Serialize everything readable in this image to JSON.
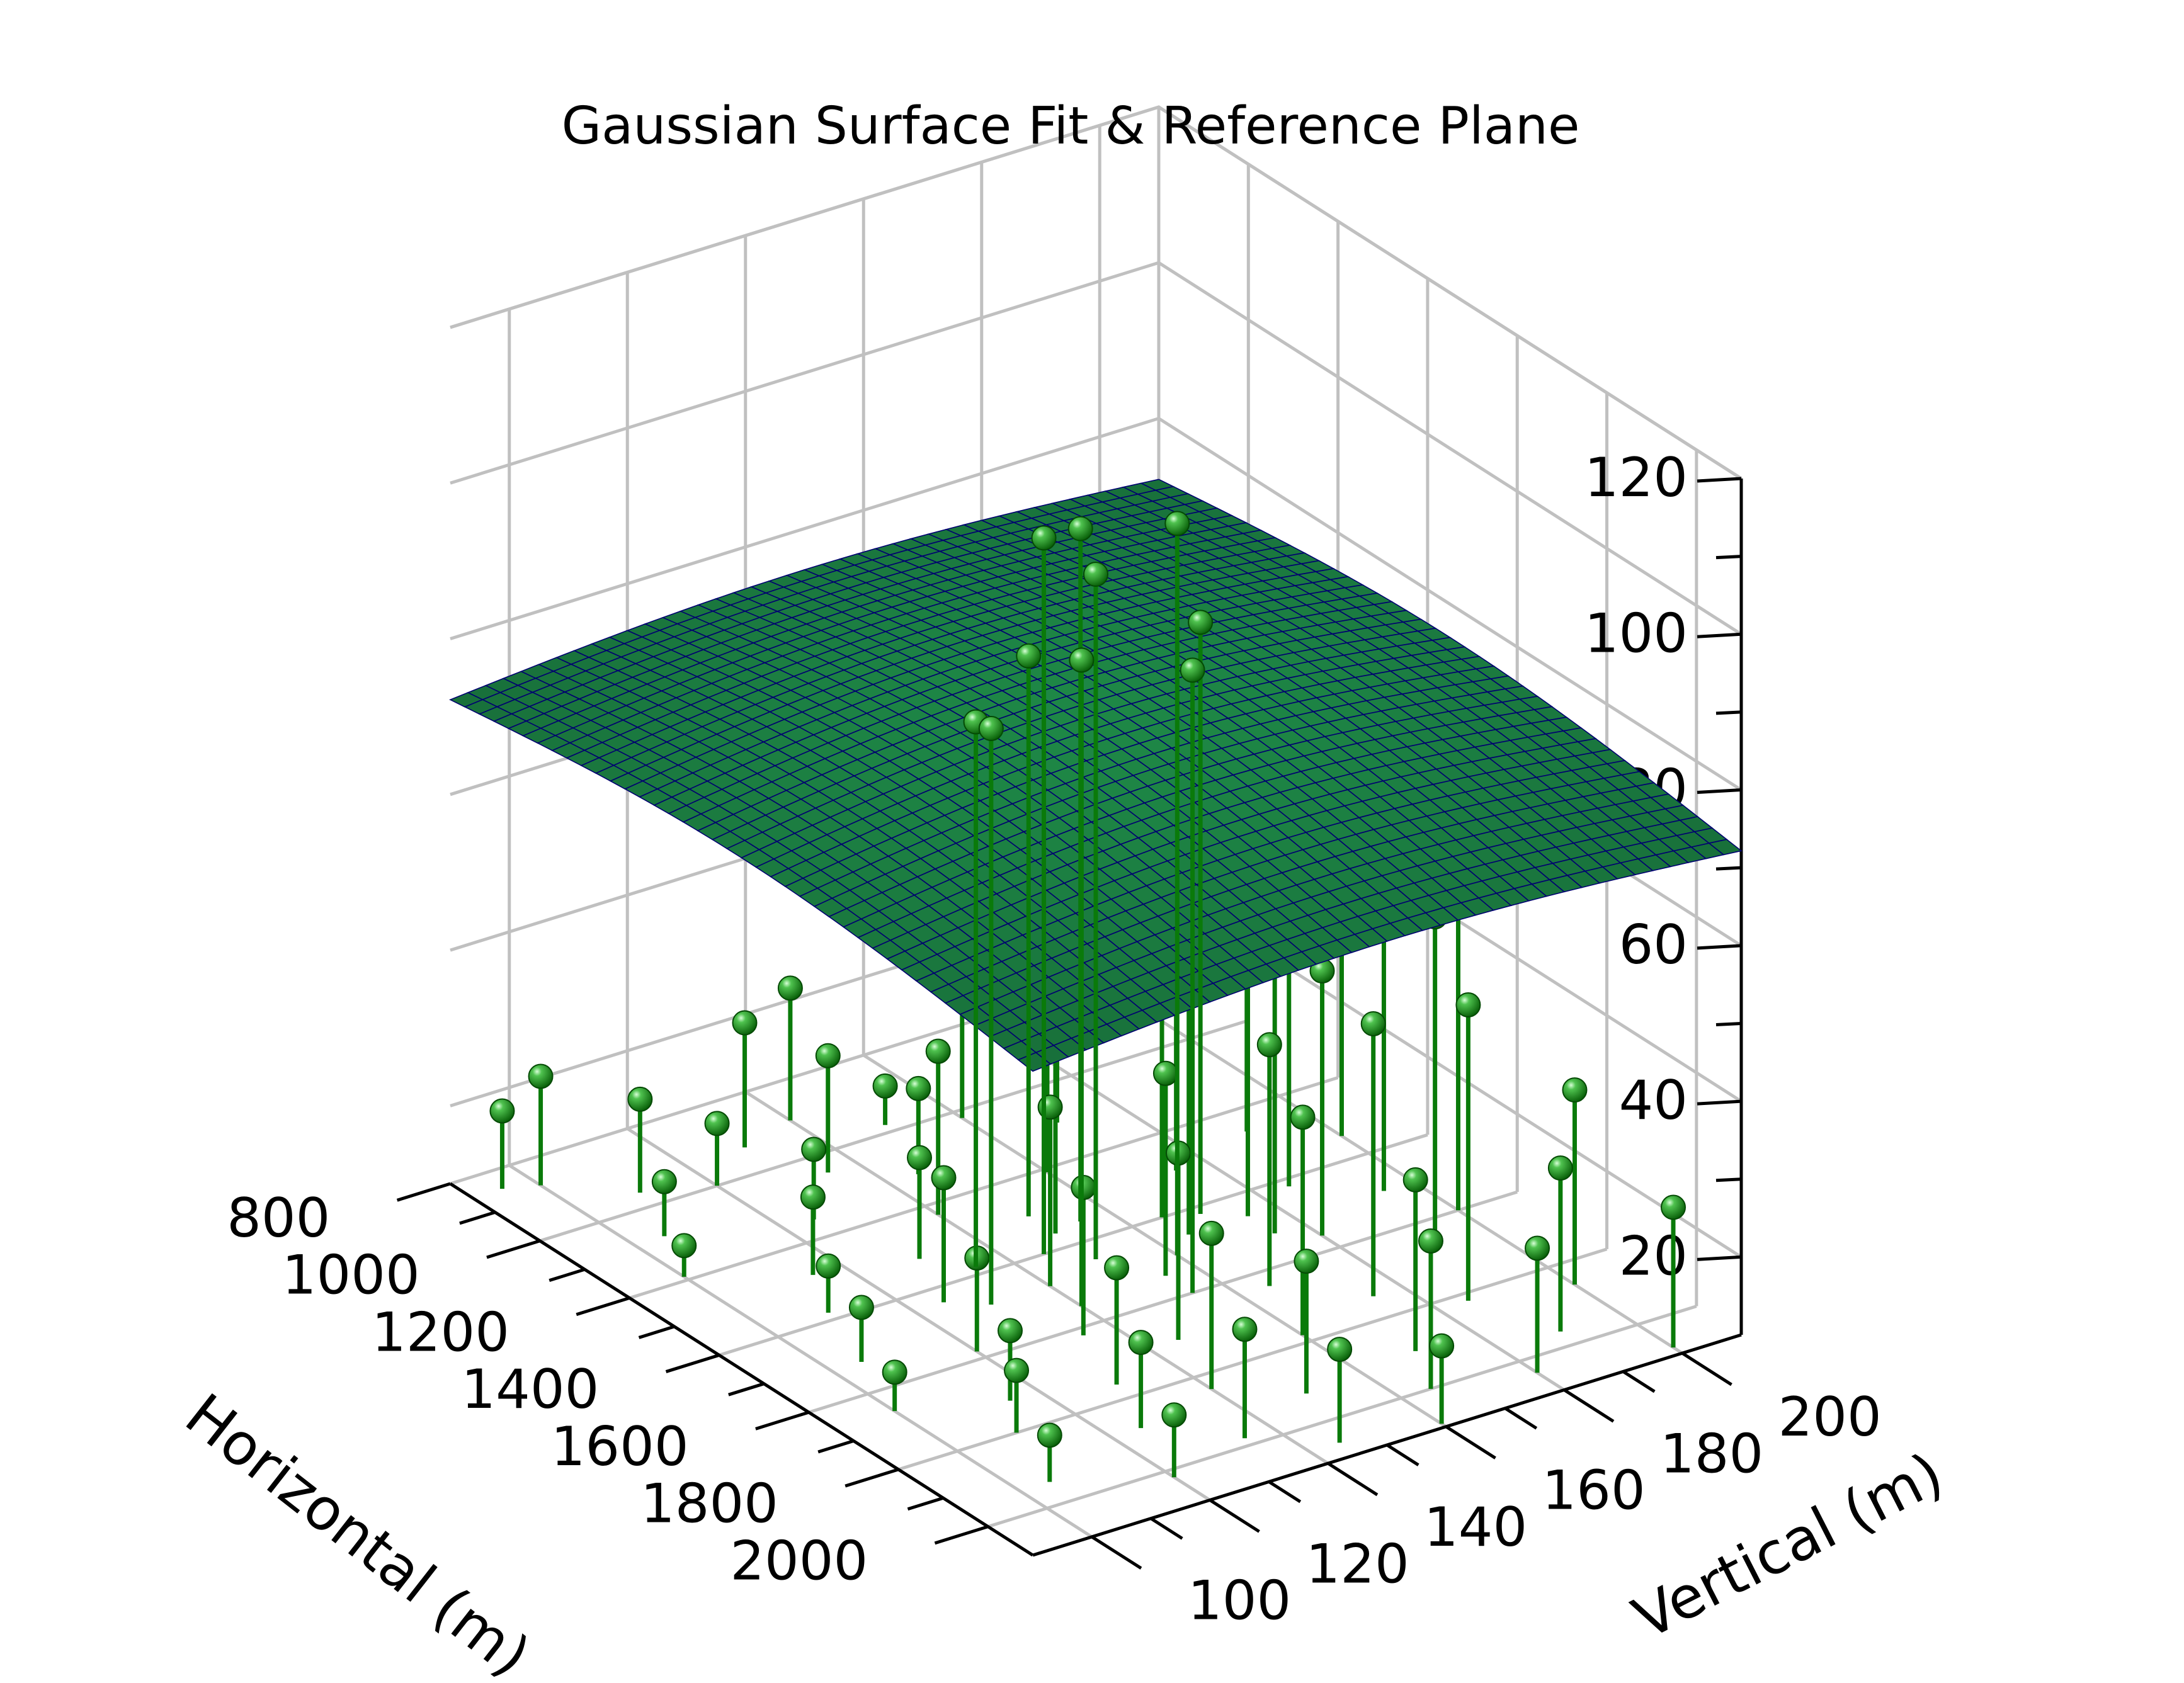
{
  "colors": {
    "grid": "#c0c0c0",
    "axis": "#000000",
    "surface_fill": "#1a6e3a",
    "surface_mesh": "#000070",
    "stem": "#0a7a0a",
    "marker": "#0a8a0a",
    "marker_highlight": "#9be89b",
    "background": "#ffffff"
  },
  "chart_data": {
    "type": "scatter",
    "title": "Gaussian Surface Fit & Reference Plane",
    "xlabel": "Horizontal (m)",
    "ylabel": "Vertical (m)",
    "zlabel": "",
    "xlim": [
      800,
      2100
    ],
    "ylim": [
      90,
      210
    ],
    "zlim": [
      10,
      120
    ],
    "x_ticks": [
      "800",
      "1000",
      "1200",
      "1400",
      "1600",
      "1800",
      "2000"
    ],
    "y_ticks": [
      "100",
      "120",
      "140",
      "160",
      "180",
      "200"
    ],
    "z_ticks": [
      "20",
      "40",
      "60",
      "80",
      "100",
      "120"
    ],
    "grid": true,
    "surface": {
      "name": "",
      "model": "gaussian",
      "amplitude": 13,
      "offset": 67,
      "center_x": 1450,
      "center_y": 150,
      "sigma_x": 900,
      "sigma_y": 95,
      "mesh_lines": 40
    },
    "points": [
      {
        "x": 850,
        "y": 95,
        "z": 20
      },
      {
        "x": 870,
        "y": 100,
        "z": 24
      },
      {
        "x": 900,
        "y": 140,
        "z": 27
      },
      {
        "x": 930,
        "y": 130,
        "z": 26
      },
      {
        "x": 960,
        "y": 110,
        "z": 22
      },
      {
        "x": 980,
        "y": 150,
        "z": 15
      },
      {
        "x": 1000,
        "y": 120,
        "z": 18
      },
      {
        "x": 1020,
        "y": 160,
        "z": 30
      },
      {
        "x": 1050,
        "y": 135,
        "z": 25
      },
      {
        "x": 1080,
        "y": 105,
        "z": 17
      },
      {
        "x": 1100,
        "y": 170,
        "z": 28
      },
      {
        "x": 1120,
        "y": 145,
        "z": 21
      },
      {
        "x": 1150,
        "y": 125,
        "z": 19
      },
      {
        "x": 1170,
        "y": 185,
        "z": 46
      },
      {
        "x": 1190,
        "y": 100,
        "z": 14
      },
      {
        "x": 1210,
        "y": 160,
        "z": 36
      },
      {
        "x": 1230,
        "y": 140,
        "z": 31
      },
      {
        "x": 1260,
        "y": 190,
        "z": 50
      },
      {
        "x": 1280,
        "y": 115,
        "z": 20
      },
      {
        "x": 1300,
        "y": 175,
        "z": 42
      },
      {
        "x": 1320,
        "y": 130,
        "z": 23
      },
      {
        "x": 1340,
        "y": 200,
        "z": 58
      },
      {
        "x": 1360,
        "y": 150,
        "z": 38
      },
      {
        "x": 1380,
        "y": 110,
        "z": 16
      },
      {
        "x": 1400,
        "y": 165,
        "z": 40
      },
      {
        "x": 1420,
        "y": 185,
        "z": 55
      },
      {
        "x": 1440,
        "y": 125,
        "z": 26
      },
      {
        "x": 1460,
        "y": 175,
        "z": 47
      },
      {
        "x": 1480,
        "y": 140,
        "z": 33
      },
      {
        "x": 1500,
        "y": 195,
        "z": 60
      },
      {
        "x": 1520,
        "y": 105,
        "z": 17
      },
      {
        "x": 1540,
        "y": 155,
        "z": 36
      },
      {
        "x": 1560,
        "y": 180,
        "z": 44
      },
      {
        "x": 1580,
        "y": 120,
        "z": 22
      },
      {
        "x": 1600,
        "y": 200,
        "z": 62
      },
      {
        "x": 1620,
        "y": 135,
        "z": 29
      },
      {
        "x": 1640,
        "y": 165,
        "z": 41
      },
      {
        "x": 1660,
        "y": 100,
        "z": 15
      },
      {
        "x": 1680,
        "y": 190,
        "z": 53
      },
      {
        "x": 1700,
        "y": 145,
        "z": 34
      },
      {
        "x": 1720,
        "y": 115,
        "z": 19
      },
      {
        "x": 1740,
        "y": 175,
        "z": 45
      },
      {
        "x": 1760,
        "y": 130,
        "z": 25
      },
      {
        "x": 1780,
        "y": 160,
        "z": 38
      },
      {
        "x": 1800,
        "y": 110,
        "z": 18
      },
      {
        "x": 1820,
        "y": 185,
        "z": 48
      },
      {
        "x": 1840,
        "y": 140,
        "z": 30
      },
      {
        "x": 1860,
        "y": 200,
        "z": 35
      },
      {
        "x": 1880,
        "y": 125,
        "z": 21
      },
      {
        "x": 1900,
        "y": 170,
        "z": 32
      },
      {
        "x": 1920,
        "y": 150,
        "z": 27
      },
      {
        "x": 1940,
        "y": 105,
        "z": 16
      },
      {
        "x": 1960,
        "y": 190,
        "z": 31
      },
      {
        "x": 1980,
        "y": 135,
        "z": 24
      },
      {
        "x": 2000,
        "y": 165,
        "z": 29
      },
      {
        "x": 2020,
        "y": 120,
        "z": 18
      },
      {
        "x": 2040,
        "y": 180,
        "z": 26
      },
      {
        "x": 2060,
        "y": 145,
        "z": 22
      },
      {
        "x": 2080,
        "y": 200,
        "z": 28
      },
      {
        "x": 2090,
        "y": 160,
        "z": 20
      },
      {
        "x": 1450,
        "y": 150,
        "z": 98
      },
      {
        "x": 1400,
        "y": 145,
        "z": 102
      },
      {
        "x": 1500,
        "y": 160,
        "z": 104
      },
      {
        "x": 1350,
        "y": 155,
        "z": 99
      },
      {
        "x": 1550,
        "y": 140,
        "z": 93
      },
      {
        "x": 1300,
        "y": 150,
        "z": 82
      },
      {
        "x": 1600,
        "y": 155,
        "z": 90
      },
      {
        "x": 1420,
        "y": 170,
        "z": 86
      },
      {
        "x": 1480,
        "y": 130,
        "z": 84
      },
      {
        "x": 1380,
        "y": 135,
        "z": 80
      },
      {
        "x": 1520,
        "y": 175,
        "z": 78
      },
      {
        "x": 1460,
        "y": 165,
        "z": 76
      }
    ]
  }
}
